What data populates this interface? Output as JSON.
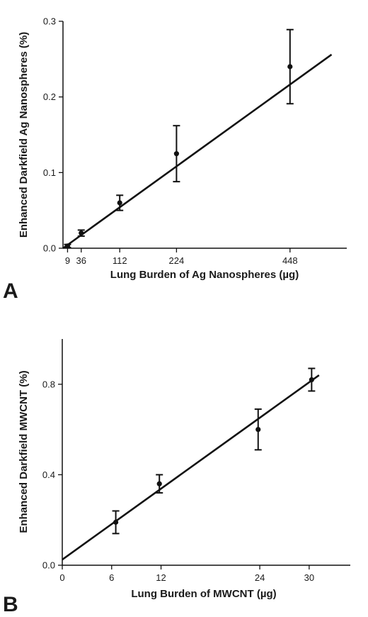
{
  "chart_data": [
    {
      "panel": "A",
      "type": "scatter",
      "xlabel": "Lung Burden of Ag Nanospheres (µg)",
      "ylabel": "Enhanced Darkfield Ag Nanospheres (%)",
      "xlim": [
        0,
        560
      ],
      "ylim": [
        0,
        0.3
      ],
      "xticks": [
        9,
        36,
        112,
        224,
        448
      ],
      "yticks": [
        0.0,
        0.1,
        0.2,
        0.3
      ],
      "ytick_labels": [
        "0.0",
        "0.1",
        "0.2",
        "0.3"
      ],
      "grid": false,
      "points": [
        {
          "x": 9,
          "y": 0.003,
          "err": 0.002
        },
        {
          "x": 36,
          "y": 0.02,
          "err": 0.004
        },
        {
          "x": 112,
          "y": 0.06,
          "err": 0.01
        },
        {
          "x": 224,
          "y": 0.125,
          "err": 0.037
        },
        {
          "x": 448,
          "y": 0.24,
          "err": 0.049
        }
      ],
      "fit_line": {
        "x": [
          0,
          530
        ],
        "y": [
          0.0,
          0.256
        ]
      }
    },
    {
      "panel": "B",
      "type": "scatter",
      "xlabel": "Lung Burden of MWCNT (µg)",
      "ylabel": "Enhanced Darkfield MWCNT (%)",
      "xlim": [
        0,
        35
      ],
      "ylim": [
        0,
        1.0
      ],
      "xticks": [
        0,
        6,
        12,
        24,
        30
      ],
      "yticks": [
        0.0,
        0.4,
        0.8
      ],
      "ytick_labels": [
        "0.0",
        "0.4",
        "0.8"
      ],
      "grid": false,
      "points": [
        {
          "x": 6.5,
          "y": 0.19,
          "err": 0.05
        },
        {
          "x": 11.8,
          "y": 0.36,
          "err": 0.04
        },
        {
          "x": 23.8,
          "y": 0.6,
          "err": 0.09
        },
        {
          "x": 30.3,
          "y": 0.82,
          "err": 0.05
        }
      ],
      "fit_line": {
        "x": [
          0,
          31.2
        ],
        "y": [
          0.025,
          0.84
        ]
      }
    }
  ]
}
